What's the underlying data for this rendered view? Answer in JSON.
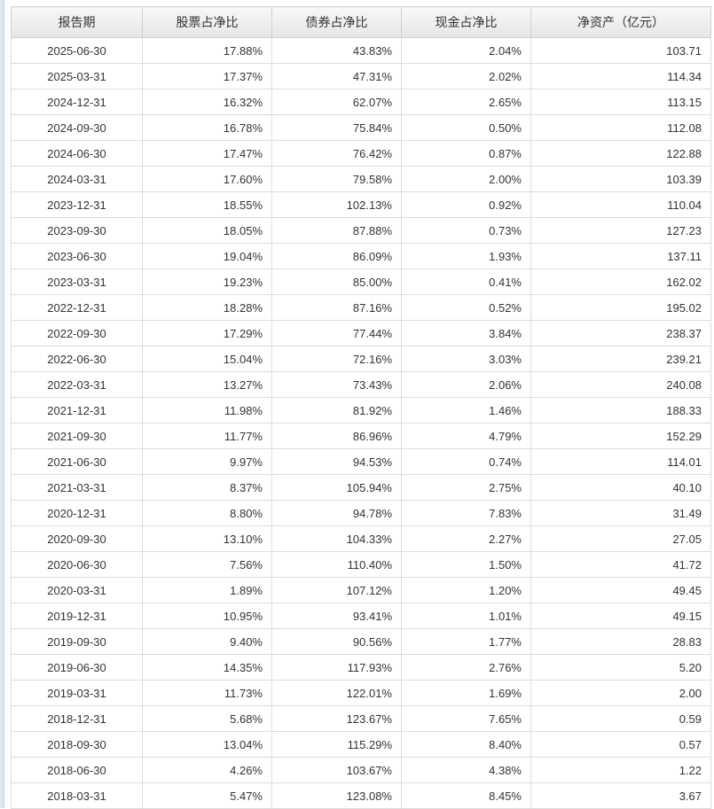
{
  "table": {
    "headers": [
      "报告期",
      "股票占净比",
      "债券占净比",
      "现金占净比",
      "净资产（亿元）"
    ],
    "rows": [
      [
        "2025-06-30",
        "17.88%",
        "43.83%",
        "2.04%",
        "103.71"
      ],
      [
        "2025-03-31",
        "17.37%",
        "47.31%",
        "2.02%",
        "114.34"
      ],
      [
        "2024-12-31",
        "16.32%",
        "62.07%",
        "2.65%",
        "113.15"
      ],
      [
        "2024-09-30",
        "16.78%",
        "75.84%",
        "0.50%",
        "112.08"
      ],
      [
        "2024-06-30",
        "17.47%",
        "76.42%",
        "0.87%",
        "122.88"
      ],
      [
        "2024-03-31",
        "17.60%",
        "79.58%",
        "2.00%",
        "103.39"
      ],
      [
        "2023-12-31",
        "18.55%",
        "102.13%",
        "0.92%",
        "110.04"
      ],
      [
        "2023-09-30",
        "18.05%",
        "87.88%",
        "0.73%",
        "127.23"
      ],
      [
        "2023-06-30",
        "19.04%",
        "86.09%",
        "1.93%",
        "137.11"
      ],
      [
        "2023-03-31",
        "19.23%",
        "85.00%",
        "0.41%",
        "162.02"
      ],
      [
        "2022-12-31",
        "18.28%",
        "87.16%",
        "0.52%",
        "195.02"
      ],
      [
        "2022-09-30",
        "17.29%",
        "77.44%",
        "3.84%",
        "238.37"
      ],
      [
        "2022-06-30",
        "15.04%",
        "72.16%",
        "3.03%",
        "239.21"
      ],
      [
        "2022-03-31",
        "13.27%",
        "73.43%",
        "2.06%",
        "240.08"
      ],
      [
        "2021-12-31",
        "11.98%",
        "81.92%",
        "1.46%",
        "188.33"
      ],
      [
        "2021-09-30",
        "11.77%",
        "86.96%",
        "4.79%",
        "152.29"
      ],
      [
        "2021-06-30",
        "9.97%",
        "94.53%",
        "0.74%",
        "114.01"
      ],
      [
        "2021-03-31",
        "8.37%",
        "105.94%",
        "2.75%",
        "40.10"
      ],
      [
        "2020-12-31",
        "8.80%",
        "94.78%",
        "7.83%",
        "31.49"
      ],
      [
        "2020-09-30",
        "13.10%",
        "104.33%",
        "2.27%",
        "27.05"
      ],
      [
        "2020-06-30",
        "7.56%",
        "110.40%",
        "1.50%",
        "41.72"
      ],
      [
        "2020-03-31",
        "1.89%",
        "107.12%",
        "1.20%",
        "49.45"
      ],
      [
        "2019-12-31",
        "10.95%",
        "93.41%",
        "1.01%",
        "49.15"
      ],
      [
        "2019-09-30",
        "9.40%",
        "90.56%",
        "1.77%",
        "28.83"
      ],
      [
        "2019-06-30",
        "14.35%",
        "117.93%",
        "2.76%",
        "5.20"
      ],
      [
        "2019-03-31",
        "11.73%",
        "122.01%",
        "1.69%",
        "2.00"
      ],
      [
        "2018-12-31",
        "5.68%",
        "123.67%",
        "7.65%",
        "0.59"
      ],
      [
        "2018-09-30",
        "13.04%",
        "115.29%",
        "8.40%",
        "0.57"
      ],
      [
        "2018-06-30",
        "4.26%",
        "103.67%",
        "4.38%",
        "1.22"
      ],
      [
        "2018-03-31",
        "5.47%",
        "123.08%",
        "8.45%",
        "3.67"
      ]
    ]
  }
}
